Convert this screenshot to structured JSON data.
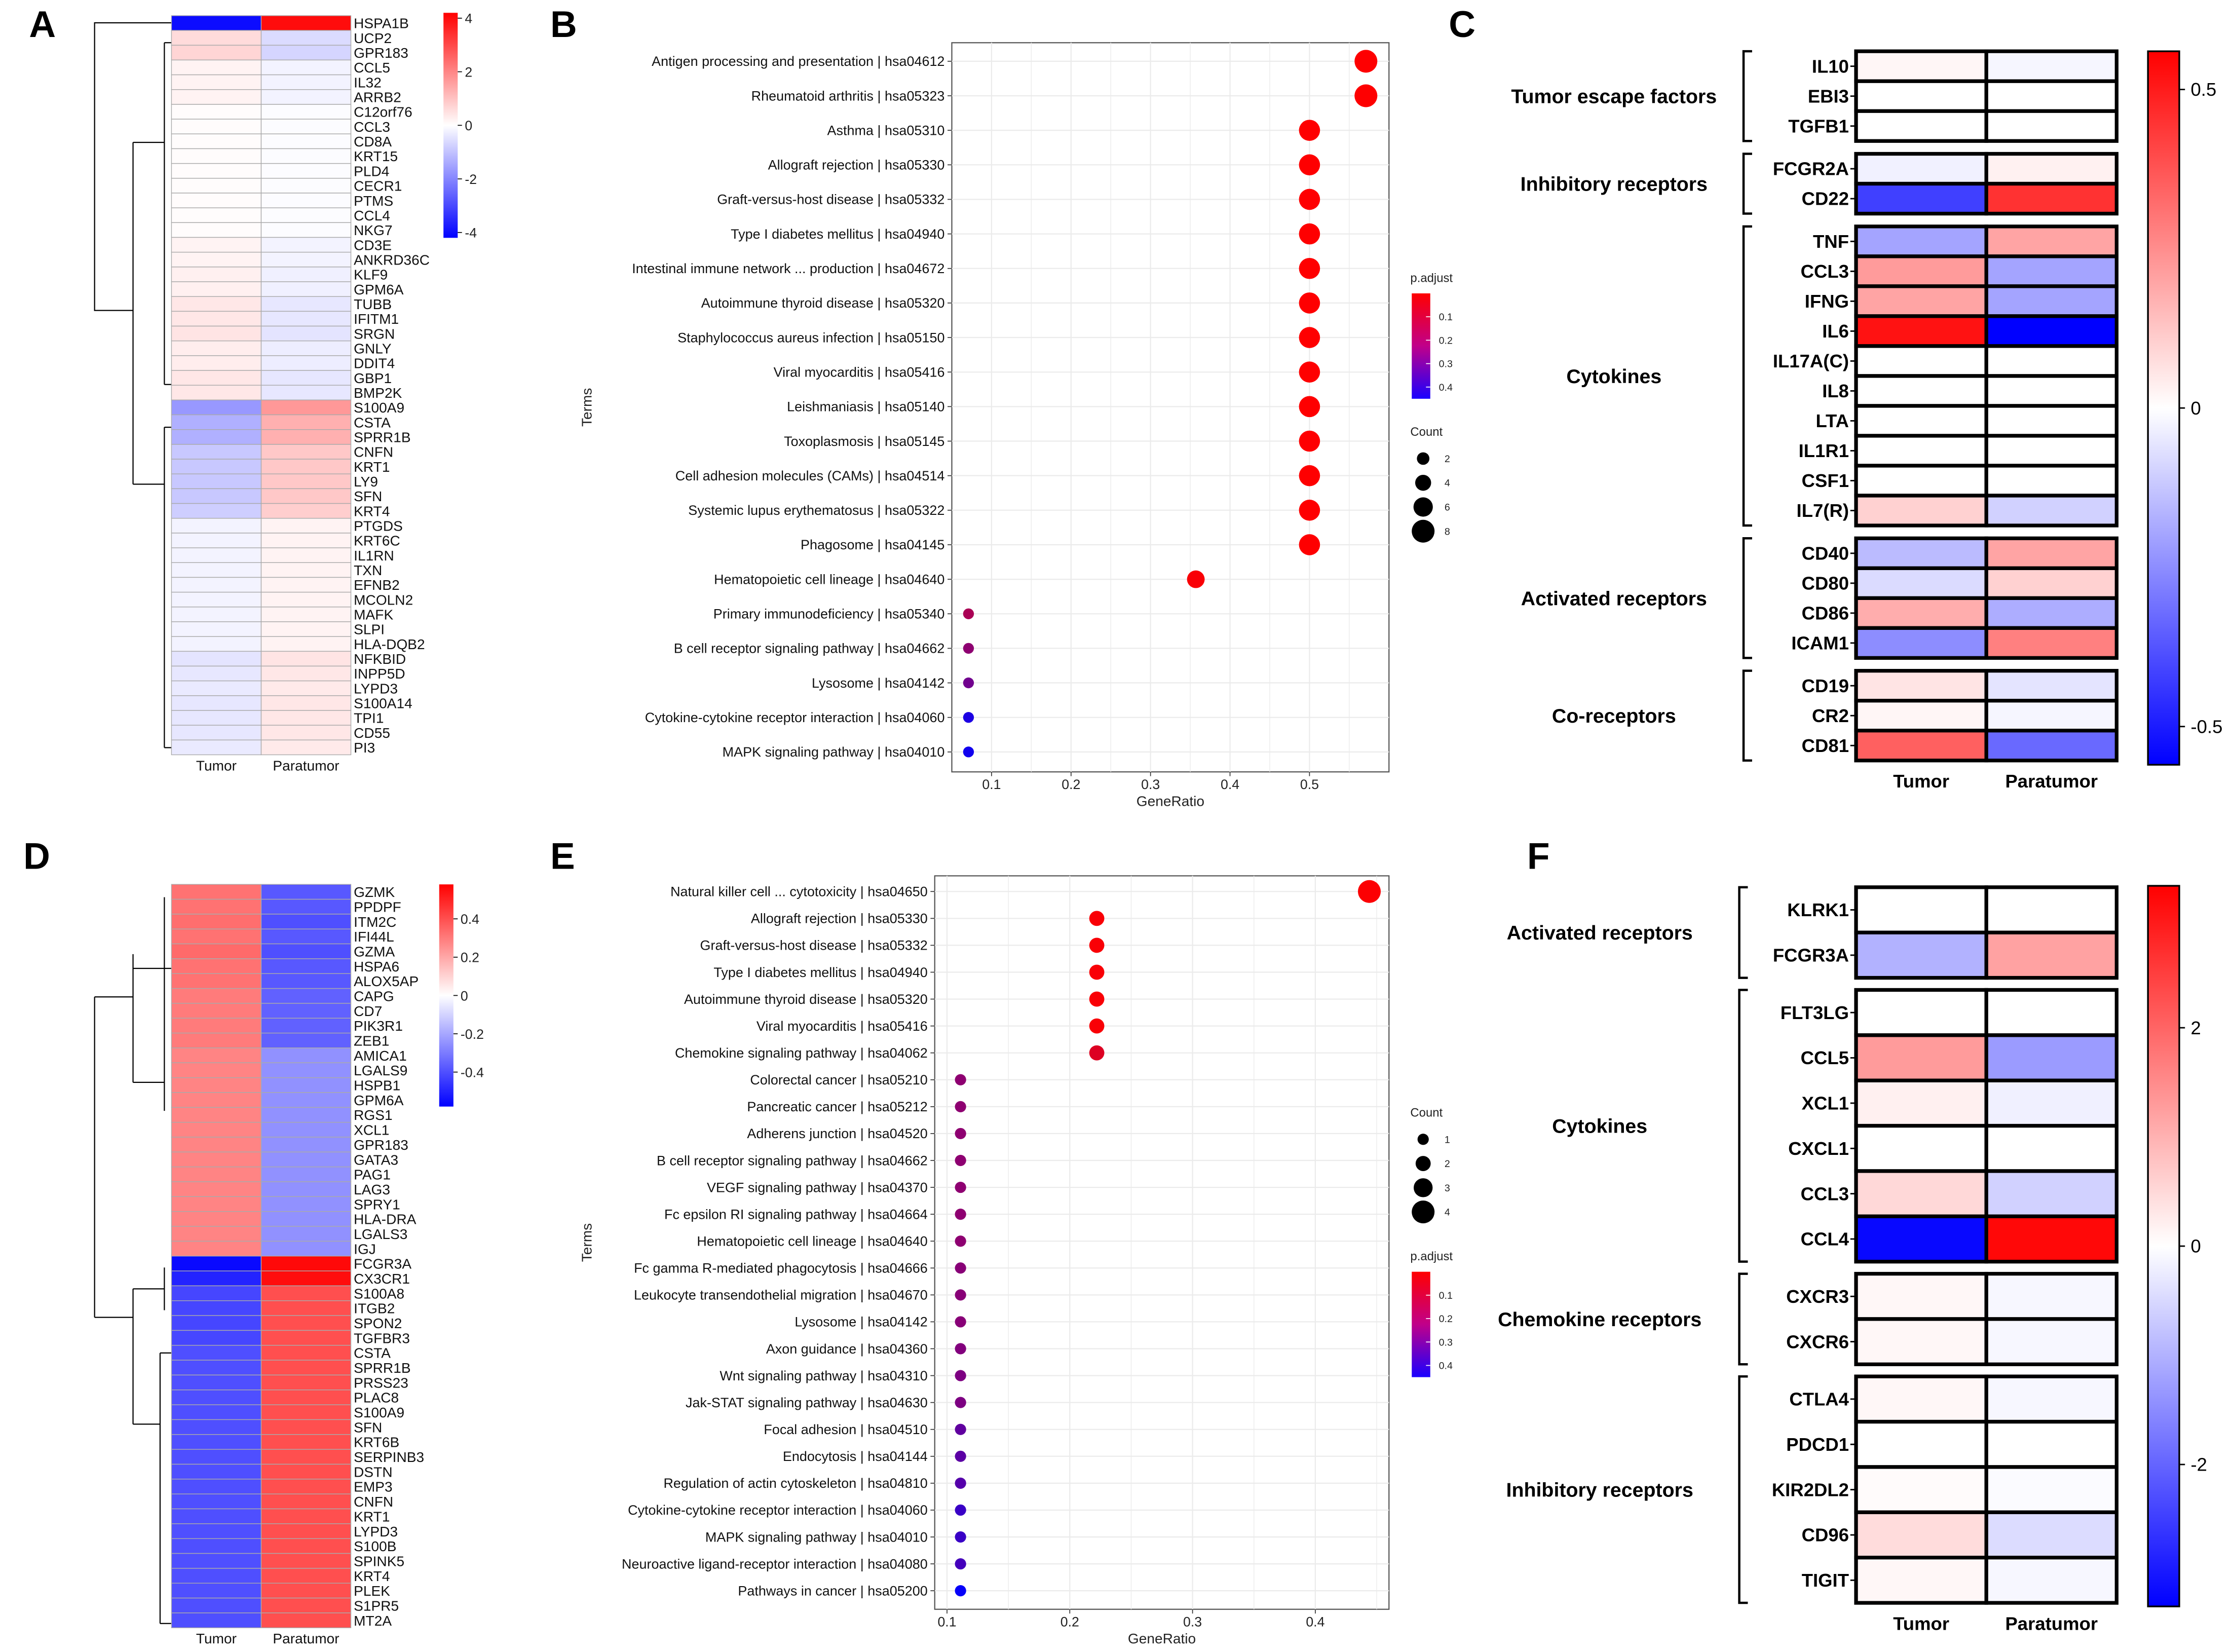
{
  "chart_data": [
    {
      "panel": "A",
      "type": "heatmap",
      "columns": [
        "Tumor",
        "Paratumor"
      ],
      "rows": [
        "HSPA1B",
        "UCP2",
        "GPR183",
        "CCL5",
        "IL32",
        "ARRB2",
        "C12orf76",
        "CCL3",
        "CD8A",
        "KRT15",
        "PLD4",
        "CECR1",
        "PTMS",
        "CCL4",
        "NKG7",
        "CD3E",
        "ANKRD36C",
        "KLF9",
        "GPM6A",
        "TUBB",
        "IFITM1",
        "SRGN",
        "GNLY",
        "DDIT4",
        "GBP1",
        "BMP2K",
        "S100A9",
        "CSTA",
        "SPRR1B",
        "CNFN",
        "KRT1",
        "LY9",
        "SFN",
        "KRT4",
        "PTGDS",
        "KRT6C",
        "IL1RN",
        "TXN",
        "EFNB2",
        "MCOLN2",
        "MAFK",
        "SLPI",
        "HLA-DQB2",
        "NFKBID",
        "INPP5D",
        "LYPD3",
        "S100A14",
        "TPI1",
        "CD55",
        "PI3"
      ],
      "values": [
        [
          -4,
          4
        ],
        [
          0.6,
          -0.6
        ],
        [
          0.7,
          -0.7
        ],
        [
          0.2,
          -0.2
        ],
        [
          0.2,
          -0.2
        ],
        [
          0.2,
          -0.2
        ],
        [
          0.05,
          -0.05
        ],
        [
          0.05,
          -0.05
        ],
        [
          0.05,
          -0.05
        ],
        [
          0.05,
          -0.05
        ],
        [
          0.05,
          -0.05
        ],
        [
          0.05,
          -0.05
        ],
        [
          0.05,
          -0.05
        ],
        [
          0.05,
          -0.05
        ],
        [
          0.05,
          -0.05
        ],
        [
          0.2,
          -0.2
        ],
        [
          0.2,
          -0.2
        ],
        [
          0.25,
          -0.25
        ],
        [
          0.25,
          -0.25
        ],
        [
          0.4,
          -0.4
        ],
        [
          0.4,
          -0.4
        ],
        [
          0.45,
          -0.45
        ],
        [
          0.3,
          -0.3
        ],
        [
          0.3,
          -0.3
        ],
        [
          0.4,
          -0.4
        ],
        [
          0.4,
          -0.4
        ],
        [
          -1.7,
          1.7
        ],
        [
          -1.3,
          1.3
        ],
        [
          -1.3,
          1.3
        ],
        [
          -0.9,
          0.9
        ],
        [
          -0.9,
          0.9
        ],
        [
          -0.9,
          0.9
        ],
        [
          -0.9,
          0.9
        ],
        [
          -0.8,
          0.8
        ],
        [
          -0.2,
          0.2
        ],
        [
          -0.2,
          0.2
        ],
        [
          -0.2,
          0.2
        ],
        [
          -0.2,
          0.2
        ],
        [
          -0.2,
          0.2
        ],
        [
          -0.2,
          0.2
        ],
        [
          -0.2,
          0.2
        ],
        [
          -0.2,
          0.2
        ],
        [
          -0.2,
          0.2
        ],
        [
          -0.45,
          0.45
        ],
        [
          -0.4,
          0.4
        ],
        [
          -0.35,
          0.35
        ],
        [
          -0.4,
          0.4
        ],
        [
          -0.4,
          0.4
        ],
        [
          -0.4,
          0.4
        ],
        [
          -0.35,
          0.35
        ]
      ],
      "colorbar": {
        "ticks": [
          4,
          2,
          0,
          -2,
          -4
        ],
        "range": [
          -4.2,
          4.2
        ]
      },
      "colors": {
        "high": "#ff0000",
        "mid": "#ffffff",
        "low": "#0000ff"
      }
    },
    {
      "panel": "B",
      "type": "scatter",
      "xlabel": "GeneRatio",
      "ylabel": "Terms",
      "xlim": [
        0.05,
        0.6
      ],
      "xticks": [
        0.1,
        0.2,
        0.3,
        0.4,
        0.5
      ],
      "terms": [
        "Antigen processing and presentation | hsa04612",
        "Rheumatoid arthritis | hsa05323",
        "Asthma | hsa05310",
        "Allograft rejection | hsa05330",
        "Graft-versus-host disease | hsa05332",
        "Type I diabetes mellitus | hsa04940",
        "Intestinal immune network ... production | hsa04672",
        "Autoimmune thyroid disease | hsa05320",
        "Staphylococcus aureus infection | hsa05150",
        "Viral myocarditis | hsa05416",
        "Leishmaniasis | hsa05140",
        "Toxoplasmosis | hsa05145",
        "Cell adhesion molecules (CAMs) | hsa04514",
        "Systemic lupus erythematosus | hsa05322",
        "Phagosome | hsa04145",
        "Hematopoietic cell lineage | hsa04640",
        "Primary immunodeficiency | hsa05340",
        "B cell receptor signaling pathway | hsa04662",
        "Lysosome | hsa04142",
        "Cytokine-cytokine receptor interaction | hsa04060",
        "MAPK signaling pathway | hsa04010"
      ],
      "gene_ratio": [
        0.571,
        0.571,
        0.5,
        0.5,
        0.5,
        0.5,
        0.5,
        0.5,
        0.5,
        0.5,
        0.5,
        0.5,
        0.5,
        0.5,
        0.5,
        0.357,
        0.071,
        0.071,
        0.071,
        0.071,
        0.071
      ],
      "count": [
        8,
        8,
        7,
        7,
        7,
        7,
        7,
        7,
        7,
        7,
        7,
        7,
        7,
        7,
        7,
        5,
        1,
        1,
        1,
        1,
        1
      ],
      "p_adjust": [
        0.001,
        0.001,
        0.002,
        0.002,
        0.002,
        0.002,
        0.002,
        0.002,
        0.002,
        0.002,
        0.002,
        0.002,
        0.002,
        0.002,
        0.002,
        0.01,
        0.15,
        0.2,
        0.25,
        0.4,
        0.42
      ],
      "legend": {
        "color_title": "p.adjust",
        "color_ticks": [
          0.1,
          0.2,
          0.3,
          0.4
        ],
        "size_title": "Count",
        "size_ticks": [
          2,
          4,
          6,
          8
        ],
        "placement": "right"
      }
    },
    {
      "panel": "C",
      "type": "heatmap",
      "columns": [
        "Tumor",
        "Paratumor"
      ],
      "groups": [
        {
          "label": "Tumor escape factors",
          "rows": [
            "IL10",
            "EBI3",
            "TGFB1"
          ],
          "values": [
            [
              0.02,
              -0.02
            ],
            [
              0,
              0
            ],
            [
              0,
              0
            ]
          ]
        },
        {
          "label": "Inhibitory receptors",
          "rows": [
            "FCGR2A",
            "CD22"
          ],
          "values": [
            [
              -0.03,
              0.03
            ],
            [
              -0.42,
              0.45
            ]
          ]
        },
        {
          "label": "Cytokines",
          "rows": [
            "TNF",
            "CCL3",
            "IFNG",
            "IL6",
            "IL17A(C)",
            "IL8",
            "LTA",
            "IL1R1",
            "CSF1",
            "IL7(R)"
          ],
          "values": [
            [
              -0.2,
              0.2
            ],
            [
              0.22,
              -0.2
            ],
            [
              0.2,
              -0.2
            ],
            [
              0.52,
              -0.56
            ],
            [
              0,
              0
            ],
            [
              0,
              0
            ],
            [
              0,
              0
            ],
            [
              0,
              0
            ],
            [
              0,
              0
            ],
            [
              0.1,
              -0.1
            ]
          ]
        },
        {
          "label": "Activated receptors",
          "rows": [
            "CD40",
            "CD80",
            "CD86",
            "ICAM1"
          ],
          "values": [
            [
              -0.15,
              0.2
            ],
            [
              -0.08,
              0.1
            ],
            [
              0.18,
              -0.18
            ],
            [
              -0.25,
              0.28
            ]
          ]
        },
        {
          "label": "Co-receptors",
          "rows": [
            "CD19",
            "CR2",
            "CD81"
          ],
          "values": [
            [
              0.06,
              -0.06
            ],
            [
              0.02,
              -0.02
            ],
            [
              0.35,
              -0.33
            ]
          ]
        }
      ],
      "colorbar": {
        "ticks": [
          0.5,
          0,
          -0.5
        ],
        "range": [
          -0.56,
          0.56
        ]
      },
      "colors": {
        "high": "#ff0000",
        "mid": "#ffffff",
        "low": "#0000ff"
      }
    },
    {
      "panel": "D",
      "type": "heatmap",
      "columns": [
        "Tumor",
        "Paratumor"
      ],
      "rows": [
        "GZMK",
        "PPDPF",
        "ITM2C",
        "IFI44L",
        "GZMA",
        "HSPA6",
        "ALOX5AP",
        "CAPG",
        "CD7",
        "PIK3R1",
        "ZEB1",
        "AMICA1",
        "LGALS9",
        "HSPB1",
        "GPM6A",
        "RGS1",
        "XCL1",
        "GPR183",
        "GATA3",
        "PAG1",
        "LAG3",
        "SPRY1",
        "HLA-DRA",
        "LGALS3",
        "IGJ",
        "FCGR3A",
        "CX3CR1",
        "S100A8",
        "ITGB2",
        "SPON2",
        "TGFBR3",
        "CSTA",
        "SPRR1B",
        "PRSS23",
        "PLAC8",
        "S100A9",
        "SFN",
        "KRT6B",
        "SERPINB3",
        "DSTN",
        "EMP3",
        "CNFN",
        "KRT1",
        "LYPD3",
        "S100B",
        "SPINK5",
        "KRT4",
        "PLEK",
        "S1PR5",
        "MT2A"
      ],
      "values": [
        [
          0.32,
          -0.38
        ],
        [
          0.32,
          -0.38
        ],
        [
          0.33,
          -0.4
        ],
        [
          0.32,
          -0.38
        ],
        [
          0.34,
          -0.4
        ],
        [
          0.32,
          -0.38
        ],
        [
          0.32,
          -0.38
        ],
        [
          0.3,
          -0.36
        ],
        [
          0.3,
          -0.36
        ],
        [
          0.3,
          -0.36
        ],
        [
          0.3,
          -0.36
        ],
        [
          0.28,
          -0.25
        ],
        [
          0.28,
          -0.25
        ],
        [
          0.28,
          -0.25
        ],
        [
          0.28,
          -0.25
        ],
        [
          0.28,
          -0.25
        ],
        [
          0.28,
          -0.25
        ],
        [
          0.28,
          -0.25
        ],
        [
          0.28,
          -0.25
        ],
        [
          0.28,
          -0.25
        ],
        [
          0.28,
          -0.25
        ],
        [
          0.28,
          -0.25
        ],
        [
          0.28,
          -0.25
        ],
        [
          0.28,
          -0.25
        ],
        [
          0.28,
          -0.25
        ],
        [
          -0.56,
          0.56
        ],
        [
          -0.5,
          0.55
        ],
        [
          -0.42,
          0.4
        ],
        [
          -0.42,
          0.4
        ],
        [
          -0.42,
          0.4
        ],
        [
          -0.42,
          0.4
        ],
        [
          -0.4,
          0.4
        ],
        [
          -0.4,
          0.4
        ],
        [
          -0.4,
          0.4
        ],
        [
          -0.4,
          0.4
        ],
        [
          -0.4,
          0.4
        ],
        [
          -0.4,
          0.4
        ],
        [
          -0.4,
          0.4
        ],
        [
          -0.4,
          0.4
        ],
        [
          -0.4,
          0.4
        ],
        [
          -0.4,
          0.4
        ],
        [
          -0.4,
          0.4
        ],
        [
          -0.4,
          0.4
        ],
        [
          -0.4,
          0.4
        ],
        [
          -0.4,
          0.4
        ],
        [
          -0.4,
          0.4
        ],
        [
          -0.4,
          0.4
        ],
        [
          -0.4,
          0.4
        ],
        [
          -0.4,
          0.4
        ],
        [
          -0.4,
          0.4
        ]
      ],
      "colorbar": {
        "ticks": [
          0.4,
          0.2,
          0,
          -0.2,
          -0.4
        ],
        "range": [
          -0.58,
          0.58
        ]
      },
      "colors": {
        "high": "#ff0000",
        "mid": "#ffffff",
        "low": "#0000ff"
      }
    },
    {
      "panel": "E",
      "type": "scatter",
      "xlabel": "GeneRatio",
      "ylabel": "Terms",
      "xlim": [
        0.09,
        0.46
      ],
      "xticks": [
        0.1,
        0.2,
        0.3,
        0.4
      ],
      "terms": [
        "Natural killer cell ... cytotoxicity | hsa04650",
        "Allograft rejection | hsa05330",
        "Graft-versus-host disease | hsa05332",
        "Type I diabetes mellitus | hsa04940",
        "Autoimmune thyroid disease | hsa05320",
        "Viral myocarditis | hsa05416",
        "Chemokine signaling pathway | hsa04062",
        "Colorectal cancer | hsa05210",
        "Pancreatic cancer | hsa05212",
        "Adherens junction | hsa04520",
        "B cell receptor signaling pathway | hsa04662",
        "VEGF signaling pathway | hsa04370",
        "Fc epsilon RI signaling pathway | hsa04664",
        "Hematopoietic cell lineage | hsa04640",
        "Fc gamma R-mediated phagocytosis | hsa04666",
        "Leukocyte transendothelial migration | hsa04670",
        "Lysosome | hsa04142",
        "Axon guidance | hsa04360",
        "Wnt signaling pathway | hsa04310",
        "Jak-STAT signaling pathway | hsa04630",
        "Focal adhesion | hsa04510",
        "Endocytosis | hsa04144",
        "Regulation of actin cytoskeleton | hsa04810",
        "Cytokine-cytokine receptor interaction | hsa04060",
        "MAPK signaling pathway | hsa04010",
        "Neuroactive ligand-receptor interaction | hsa04080",
        "Pathways in cancer | hsa05200"
      ],
      "gene_ratio": [
        0.444,
        0.222,
        0.222,
        0.222,
        0.222,
        0.222,
        0.222,
        0.111,
        0.111,
        0.111,
        0.111,
        0.111,
        0.111,
        0.111,
        0.111,
        0.111,
        0.111,
        0.111,
        0.111,
        0.111,
        0.111,
        0.111,
        0.111,
        0.111,
        0.111,
        0.111,
        0.111
      ],
      "count": [
        4,
        2,
        2,
        2,
        2,
        2,
        2,
        1,
        1,
        1,
        1,
        1,
        1,
        1,
        1,
        1,
        1,
        1,
        1,
        1,
        1,
        1,
        1,
        1,
        1,
        1,
        1
      ],
      "p_adjust": [
        0.005,
        0.01,
        0.01,
        0.01,
        0.01,
        0.01,
        0.06,
        0.2,
        0.2,
        0.2,
        0.2,
        0.2,
        0.2,
        0.2,
        0.21,
        0.21,
        0.21,
        0.22,
        0.23,
        0.23,
        0.28,
        0.29,
        0.3,
        0.35,
        0.35,
        0.33,
        0.44
      ],
      "legend": {
        "color_title": "p.adjust",
        "color_ticks": [
          0.1,
          0.2,
          0.3,
          0.4
        ],
        "size_title": "Count",
        "size_ticks": [
          1,
          2,
          3,
          4
        ],
        "placement": "right"
      }
    },
    {
      "panel": "F",
      "type": "heatmap",
      "columns": [
        "Tumor",
        "Paratumor"
      ],
      "groups": [
        {
          "label": "Activated receptors",
          "rows": [
            "KLRK1",
            "FCGR3A"
          ],
          "values": [
            [
              0,
              0
            ],
            [
              -1.0,
              1.2
            ]
          ]
        },
        {
          "label": "Cytokines",
          "rows": [
            "FLT3LG",
            "CCL5",
            "XCL1",
            "CXCL1",
            "CCL3",
            "CCL4"
          ],
          "values": [
            [
              0,
              0
            ],
            [
              1.3,
              -1.3
            ],
            [
              0.2,
              -0.2
            ],
            [
              0,
              0
            ],
            [
              0.5,
              -0.6
            ],
            [
              -3.2,
              3.2
            ]
          ]
        },
        {
          "label": "Chemokine receptors",
          "rows": [
            "CXCR3",
            "CXCR6"
          ],
          "values": [
            [
              0.1,
              -0.1
            ],
            [
              0.1,
              -0.1
            ]
          ]
        },
        {
          "label": "Inhibitory receptors",
          "rows": [
            "CTLA4",
            "PDCD1",
            "KIR2DL2",
            "CD96",
            "TIGIT"
          ],
          "values": [
            [
              0.1,
              -0.1
            ],
            [
              0,
              0
            ],
            [
              0.05,
              -0.05
            ],
            [
              0.45,
              -0.45
            ],
            [
              0.1,
              -0.1
            ]
          ]
        }
      ],
      "colorbar": {
        "ticks": [
          2,
          0,
          -2
        ],
        "range": [
          -3.3,
          3.3
        ]
      },
      "colors": {
        "high": "#ff0000",
        "mid": "#ffffff",
        "low": "#0000ff"
      }
    }
  ]
}
